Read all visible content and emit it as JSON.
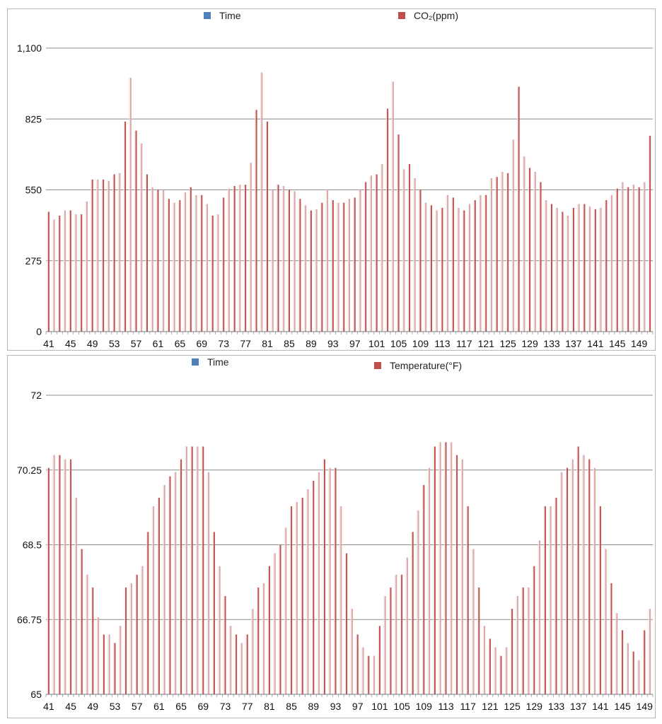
{
  "chart_data": [
    {
      "type": "bar",
      "legend": [
        {
          "name": "Time",
          "color": "#4f81bd"
        },
        {
          "name": "CO₂(ppm)",
          "color": "#c0504d"
        }
      ],
      "legend_position": "top",
      "grid": true,
      "yticks": [
        "0",
        "275",
        "550",
        "825",
        "1,100"
      ],
      "ytick_values": [
        0,
        275,
        550,
        825,
        1100
      ],
      "ylim": [
        0,
        1100
      ],
      "xticks": [
        "41",
        "45",
        "49",
        "53",
        "57",
        "61",
        "65",
        "69",
        "73",
        "77",
        "81",
        "85",
        "89",
        "93",
        "97",
        "101",
        "105",
        "109",
        "113",
        "117",
        "121",
        "125",
        "129",
        "133",
        "137",
        "141",
        "145",
        "149"
      ],
      "x_start": 41,
      "series": [
        {
          "name": "CO₂(ppm)",
          "values": [
            465,
            435,
            450,
            470,
            470,
            455,
            455,
            505,
            590,
            590,
            590,
            585,
            610,
            615,
            815,
            985,
            780,
            730,
            610,
            560,
            550,
            550,
            515,
            500,
            510,
            540,
            560,
            530,
            530,
            495,
            450,
            455,
            520,
            555,
            565,
            570,
            570,
            655,
            860,
            1005,
            815,
            550,
            570,
            565,
            550,
            545,
            515,
            490,
            470,
            475,
            500,
            550,
            510,
            500,
            500,
            515,
            520,
            550,
            580,
            605,
            610,
            650,
            865,
            970,
            765,
            630,
            650,
            595,
            550,
            500,
            490,
            470,
            480,
            530,
            520,
            480,
            470,
            495,
            510,
            530,
            530,
            595,
            600,
            620,
            615,
            745,
            950,
            680,
            635,
            620,
            580,
            510,
            495,
            480,
            465,
            450,
            480,
            495,
            495,
            485,
            475,
            480,
            510,
            530,
            555,
            580,
            560,
            570,
            560,
            580,
            760
          ]
        }
      ]
    },
    {
      "type": "bar",
      "legend": [
        {
          "name": "Time",
          "color": "#4f81bd"
        },
        {
          "name": "Temperature(°F)",
          "color": "#c0504d"
        }
      ],
      "legend_position": "top",
      "grid": true,
      "yticks": [
        "65",
        "66.75",
        "68.5",
        "70.25",
        "72"
      ],
      "ytick_values": [
        65,
        66.75,
        68.5,
        70.25,
        72
      ],
      "ylim": [
        65,
        72
      ],
      "xticks": [
        "41",
        "45",
        "49",
        "53",
        "57",
        "61",
        "65",
        "69",
        "73",
        "77",
        "81",
        "85",
        "89",
        "93",
        "97",
        "101",
        "105",
        "109",
        "113",
        "117",
        "121",
        "125",
        "129",
        "133",
        "137",
        "141",
        "145",
        "149"
      ],
      "x_start": 41,
      "series": [
        {
          "name": "Temperature(°F)",
          "values": [
            70.3,
            70.6,
            70.6,
            70.5,
            70.5,
            69.6,
            68.4,
            67.8,
            67.5,
            66.8,
            66.4,
            66.4,
            66.2,
            66.6,
            67.5,
            67.6,
            67.8,
            68.0,
            68.8,
            69.4,
            69.6,
            69.9,
            70.1,
            70.2,
            70.5,
            70.8,
            70.8,
            70.8,
            70.8,
            70.2,
            68.8,
            68.0,
            67.3,
            66.6,
            66.4,
            66.2,
            66.4,
            67.0,
            67.5,
            67.6,
            68.0,
            68.3,
            68.5,
            68.9,
            69.4,
            69.5,
            69.6,
            69.8,
            70.0,
            70.2,
            70.5,
            70.3,
            70.3,
            69.4,
            68.3,
            67.0,
            66.4,
            66.1,
            65.9,
            65.9,
            66.6,
            67.3,
            67.5,
            67.8,
            67.8,
            68.2,
            68.8,
            69.3,
            69.9,
            70.3,
            70.8,
            70.9,
            70.9,
            70.9,
            70.6,
            70.5,
            69.4,
            68.4,
            67.5,
            66.6,
            66.3,
            66.1,
            65.9,
            66.1,
            67.0,
            67.3,
            67.5,
            67.5,
            68.0,
            68.6,
            69.4,
            69.4,
            69.6,
            70.2,
            70.3,
            70.5,
            70.8,
            70.6,
            70.5,
            70.3,
            69.4,
            68.4,
            67.6,
            66.9,
            66.5,
            66.2,
            66.0,
            65.8,
            66.5,
            67.0
          ]
        }
      ]
    }
  ]
}
